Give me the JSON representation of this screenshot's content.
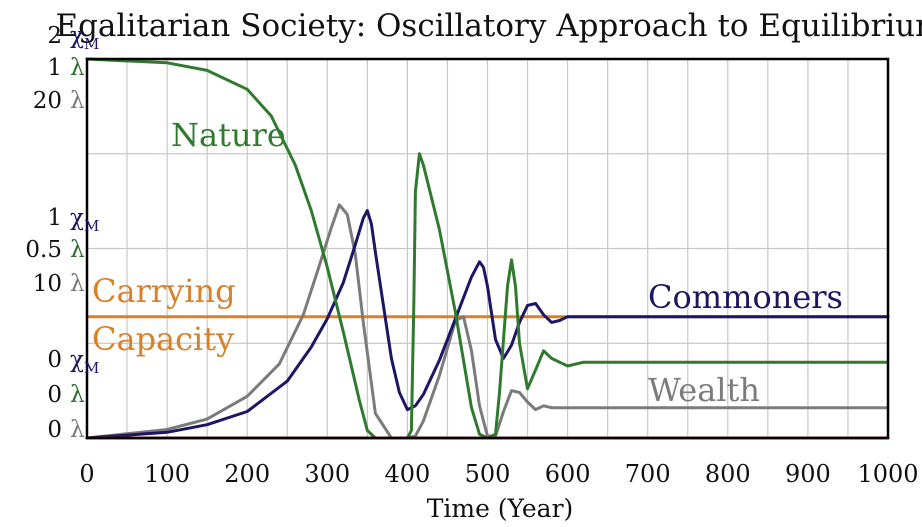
{
  "chart_data": {
    "type": "line",
    "title": "Egalitarian Society: Oscillatory Approach to Equilibrium",
    "xlabel": "Time (Year)",
    "xlim": [
      0,
      1000
    ],
    "x_ticks": [
      "0",
      "100",
      "200",
      "300",
      "400",
      "500",
      "600",
      "700",
      "800",
      "900",
      "1000"
    ],
    "y_axes": [
      {
        "unit": "χM",
        "color": "#1c1664",
        "ticks": [
          {
            "value": 0,
            "label": "0 χM"
          },
          {
            "value": 1,
            "label": "1 χM"
          },
          {
            "value": 2,
            "label": "2 χM"
          }
        ]
      },
      {
        "unit": "λ",
        "color": "#2e6e2e",
        "ticks": [
          {
            "value": 0,
            "label": "0 λ"
          },
          {
            "value": 0.5,
            "label": "0.5 λ"
          },
          {
            "value": 1,
            "label": "1 λ"
          }
        ]
      },
      {
        "unit": "λ",
        "color": "#7a7a7a",
        "ticks": [
          {
            "value": 0,
            "label": "0 λ"
          },
          {
            "value": 10,
            "label": "10 λ"
          },
          {
            "value": 20,
            "label": "20 λ"
          }
        ]
      }
    ],
    "grid": true,
    "series": [
      {
        "name": "Nature",
        "color": "#2f7a2f",
        "axis": 1,
        "x": [
          0,
          100,
          150,
          200,
          230,
          260,
          280,
          300,
          320,
          340,
          350,
          360,
          380,
          400,
          405,
          408,
          410,
          415,
          420,
          440,
          460,
          480,
          490,
          500,
          510,
          515,
          520,
          525,
          530,
          535,
          540,
          550,
          560,
          570,
          580,
          590,
          600,
          620,
          650,
          700,
          800,
          1000
        ],
        "y": [
          1,
          0.99,
          0.97,
          0.92,
          0.85,
          0.72,
          0.6,
          0.45,
          0.28,
          0.1,
          0.02,
          0,
          0,
          0,
          0.02,
          0.35,
          0.65,
          0.75,
          0.72,
          0.55,
          0.33,
          0.08,
          0.01,
          0,
          0.01,
          0.12,
          0.26,
          0.4,
          0.47,
          0.4,
          0.25,
          0.13,
          0.18,
          0.23,
          0.21,
          0.2,
          0.19,
          0.2,
          0.2,
          0.2,
          0.2,
          0.2
        ]
      },
      {
        "name": "Commoners",
        "color": "#1c1664",
        "axis": 0,
        "x": [
          0,
          100,
          150,
          200,
          250,
          280,
          300,
          320,
          335,
          345,
          350,
          355,
          360,
          370,
          380,
          390,
          400,
          410,
          420,
          440,
          460,
          480,
          490,
          495,
          500,
          510,
          520,
          530,
          540,
          550,
          560,
          570,
          580,
          590,
          600,
          620,
          650,
          700,
          800,
          1000
        ],
        "y": [
          0,
          0.03,
          0.07,
          0.14,
          0.3,
          0.48,
          0.63,
          0.82,
          1.02,
          1.16,
          1.2,
          1.13,
          0.98,
          0.7,
          0.42,
          0.24,
          0.15,
          0.17,
          0.23,
          0.41,
          0.63,
          0.85,
          0.93,
          0.9,
          0.8,
          0.52,
          0.42,
          0.49,
          0.61,
          0.7,
          0.71,
          0.65,
          0.61,
          0.62,
          0.64,
          0.64,
          0.64,
          0.64,
          0.64,
          0.64
        ]
      },
      {
        "name": "Wealth",
        "color": "#7b7b7b",
        "axis": 2,
        "x": [
          0,
          100,
          150,
          200,
          240,
          270,
          290,
          305,
          315,
          325,
          335,
          345,
          360,
          380,
          400,
          410,
          420,
          440,
          460,
          470,
          480,
          490,
          500,
          510,
          520,
          530,
          540,
          550,
          560,
          570,
          580,
          590,
          600,
          650,
          700,
          800,
          1000
        ],
        "y": [
          0,
          0.45,
          1,
          2.2,
          3.9,
          6.5,
          9.1,
          11.1,
          12.3,
          11.8,
          9.7,
          6.1,
          1.3,
          0,
          0,
          0.1,
          0.9,
          3.3,
          6.2,
          6.4,
          4.6,
          1.7,
          0.1,
          0.1,
          1.4,
          2.5,
          2.4,
          1.9,
          1.5,
          1.7,
          1.6,
          1.6,
          1.6,
          1.6,
          1.6,
          1.6,
          1.6
        ]
      },
      {
        "name": "Carrying Capacity",
        "color": "#d8812a",
        "axis": 0,
        "x": [
          0,
          1000
        ],
        "y": [
          0.64,
          0.64
        ]
      },
      {
        "name": "",
        "color": "#b3262a",
        "axis": 0,
        "x": [
          0,
          1000
        ],
        "y": [
          0,
          0
        ]
      }
    ],
    "series_labels": [
      {
        "series": "Nature",
        "lines": [
          "Nature"
        ],
        "color": "#2f7a2f"
      },
      {
        "series": "Commoners",
        "lines": [
          "Commoners"
        ],
        "color": "#1c1664"
      },
      {
        "series": "Wealth",
        "lines": [
          "Wealth"
        ],
        "color": "#7b7b7b"
      },
      {
        "series": "Carrying Capacity",
        "lines": [
          "Carrying",
          "Capacity"
        ],
        "color": "#d8812a"
      }
    ]
  }
}
